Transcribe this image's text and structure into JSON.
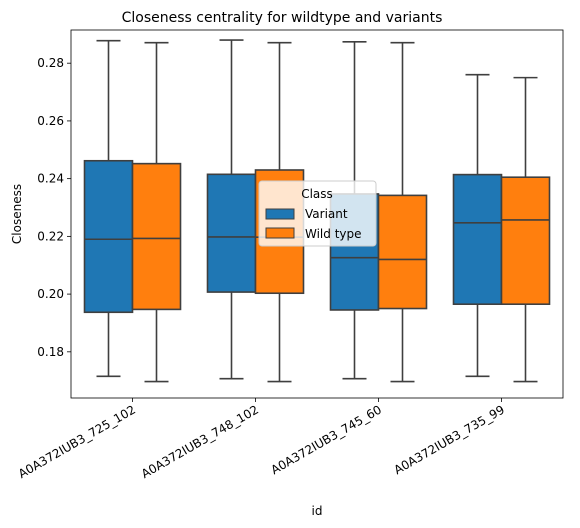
{
  "chart_data": {
    "type": "box",
    "title": "Closeness centrality for wildtype and variants",
    "xlabel": "id",
    "ylabel": "Closeness",
    "ylim": [
      0.164,
      0.2915
    ],
    "yticks": [
      0.18,
      0.2,
      0.22,
      0.24,
      0.26,
      0.28
    ],
    "ytick_labels": [
      "0.18",
      "0.20",
      "0.22",
      "0.24",
      "0.26",
      "0.28"
    ],
    "categories": [
      "A0A372IUB3_725_102",
      "A0A372IUB3_748_102",
      "A0A372IUB3_745_60",
      "A0A372IUB3_735_99"
    ],
    "legend": {
      "title": "Class",
      "position": "center"
    },
    "grid": false,
    "series": [
      {
        "name": "Variant",
        "color": "#1f77b4",
        "boxes": [
          {
            "min": 0.1715,
            "q1": 0.1937,
            "median": 0.219,
            "q3": 0.2462,
            "max": 0.2878
          },
          {
            "min": 0.1707,
            "q1": 0.2007,
            "median": 0.2198,
            "q3": 0.2415,
            "max": 0.288
          },
          {
            "min": 0.1707,
            "q1": 0.1945,
            "median": 0.2126,
            "q3": 0.2347,
            "max": 0.2874
          },
          {
            "min": 0.1715,
            "q1": 0.1965,
            "median": 0.2247,
            "q3": 0.2414,
            "max": 0.276
          }
        ]
      },
      {
        "name": "Wild type",
        "color": "#ff7f0e",
        "boxes": [
          {
            "min": 0.1697,
            "q1": 0.1947,
            "median": 0.2193,
            "q3": 0.2452,
            "max": 0.2871
          },
          {
            "min": 0.1697,
            "q1": 0.2003,
            "median": 0.2197,
            "q3": 0.243,
            "max": 0.2871
          },
          {
            "min": 0.1697,
            "q1": 0.195,
            "median": 0.212,
            "q3": 0.2342,
            "max": 0.2871
          },
          {
            "min": 0.1697,
            "q1": 0.1965,
            "median": 0.2257,
            "q3": 0.2405,
            "max": 0.275
          }
        ]
      }
    ]
  }
}
